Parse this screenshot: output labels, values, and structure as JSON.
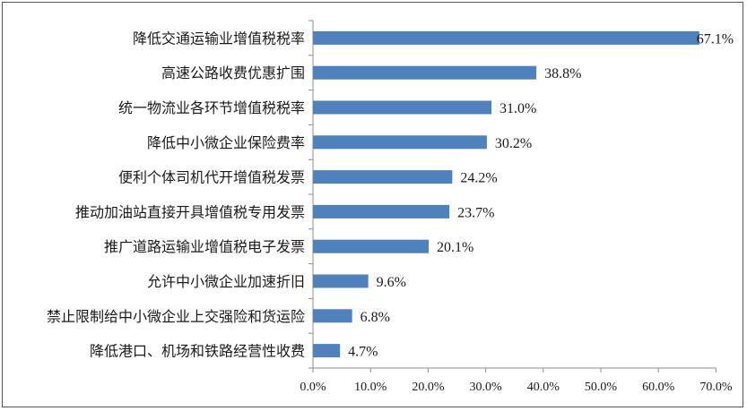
{
  "chart_data": {
    "type": "bar",
    "orientation": "horizontal",
    "categories": [
      "降低交通运输业增值税税率",
      "高速公路收费优惠扩围",
      "统一物流业各环节增值税税率",
      "降低中小微企业保险费率",
      "便利个体司机代开增值税发票",
      "推动加油站直接开具增值税专用发票",
      "推广道路运输业增值税电子发票",
      "允许中小微企业加速折旧",
      "禁止限制给中小微企业上交强险和货运险",
      "降低港口、机场和铁路经营性收费"
    ],
    "values": [
      67.1,
      38.8,
      31.0,
      30.2,
      24.2,
      23.7,
      20.1,
      9.6,
      6.8,
      4.7
    ],
    "value_labels": [
      "67.1%",
      "38.8%",
      "31.0%",
      "30.2%",
      "24.2%",
      "23.7%",
      "20.1%",
      "9.6%",
      "6.8%",
      "4.7%"
    ],
    "xlim": [
      0,
      70
    ],
    "xticks": [
      "0.0%",
      "10.0%",
      "20.0%",
      "30.0%",
      "40.0%",
      "50.0%",
      "60.0%",
      "70.0%"
    ],
    "bar_color": "#4F81BD",
    "grid": false,
    "title": "",
    "xlabel": "",
    "ylabel": ""
  }
}
